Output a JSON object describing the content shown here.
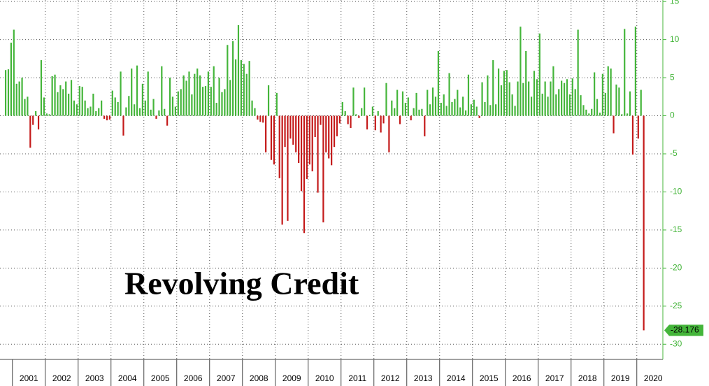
{
  "chart_data": {
    "type": "bar",
    "title": "Revolving Credit",
    "values": [
      6.0,
      6.1,
      9.6,
      11.3,
      4.2,
      4.5,
      5.0,
      2.2,
      2.5,
      -4.2,
      -1.2,
      0.6,
      -1.8,
      7.3,
      2.4,
      0.3,
      0.2,
      5.2,
      5.4,
      3.1,
      4.0,
      3.5,
      4.5,
      2.9,
      4.7,
      2.0,
      1.5,
      3.9,
      3.8,
      2.0,
      1.0,
      1.2,
      2.9,
      0.6,
      1.0,
      2.0,
      -0.4,
      -0.6,
      -0.5,
      3.3,
      2.4,
      1.8,
      5.8,
      -2.6,
      1.1,
      2.6,
      6.2,
      1.5,
      6.6,
      1.0,
      4.2,
      2.0,
      5.8,
      0.8,
      2.2,
      -0.4,
      0.7,
      6.5,
      0.9,
      -1.3,
      5.0,
      2.5,
      1.2,
      3.2,
      3.5,
      5.3,
      4.6,
      5.8,
      2.8,
      5.5,
      6.2,
      5.3,
      3.8,
      3.9,
      5.8,
      3.8,
      6.5,
      1.7,
      5.0,
      3.1,
      3.5,
      9.3,
      4.7,
      9.8,
      7.4,
      11.9,
      7.3,
      6.8,
      5.5,
      7.2,
      2.0,
      1.0,
      -0.5,
      -0.8,
      -0.9,
      -4.8,
      4.0,
      -5.8,
      -6.4,
      3.0,
      -8.2,
      -14.3,
      -4.1,
      -13.8,
      -3.0,
      -3.8,
      -4.8,
      -6.2,
      -9.9,
      -15.4,
      -8.3,
      -6.4,
      -7.3,
      -2.8,
      -10.1,
      -1.2,
      -14.0,
      -4.8,
      -5.6,
      -6.5,
      -4.1,
      -2.7,
      -1.0,
      1.8,
      0.6,
      -1.1,
      -1.6,
      3.7,
      0.2,
      -0.3,
      1.0,
      3.7,
      -1.8,
      0.1,
      1.2,
      -1.9,
      0.6,
      -2.2,
      -1.0,
      4.3,
      -4.8,
      2.0,
      1.0,
      3.4,
      -1.1,
      3.2,
      1.7,
      2.4,
      -0.6,
      1.0,
      3.0,
      0.8,
      0.9,
      -2.7,
      3.4,
      1.5,
      3.7,
      2.5,
      8.5,
      1.7,
      2.8,
      1.3,
      5.6,
      1.8,
      2.2,
      3.4,
      1.1,
      2.5,
      0.7,
      5.4,
      1.5,
      2.1,
      1.2,
      -0.3,
      4.4,
      1.8,
      5.3,
      1.4,
      7.3,
      1.5,
      6.2,
      4.0,
      5.9,
      6.0,
      4.4,
      2.8,
      1.3,
      4.5,
      11.7,
      4.3,
      8.5,
      4.5,
      2.5,
      5.9,
      4.8,
      10.8,
      2.9,
      4.5,
      2.5,
      4.5,
      6.5,
      2.8,
      3.5,
      4.6,
      4.3,
      4.8,
      2.8,
      4.9,
      3.5,
      11.3,
      2.7,
      1.4,
      0.8,
      0.3,
      0.9,
      5.7,
      2.2,
      0.4,
      5.5,
      3.0,
      6.5,
      6.2,
      -2.3,
      4.1,
      3.7,
      0.2,
      11.4,
      0.3,
      3.2,
      -5.1,
      11.7,
      -3.0,
      3.4,
      -28.176
    ],
    "positive_color": "#44b53a",
    "negative_color": "#c41a1a",
    "ylim": [
      -31.5,
      15.2
    ],
    "yticks": [
      15,
      10,
      5,
      0,
      -5,
      -10,
      -15,
      -20,
      -25,
      -30
    ],
    "xticks": [
      {
        "value": 3,
        "label": "2001"
      },
      {
        "value": 15,
        "label": "2002"
      },
      {
        "value": 27,
        "label": "2003"
      },
      {
        "value": 39,
        "label": "2004"
      },
      {
        "value": 51,
        "label": "2005"
      },
      {
        "value": 63,
        "label": "2006"
      },
      {
        "value": 75,
        "label": "2007"
      },
      {
        "value": 87,
        "label": "2008"
      },
      {
        "value": 99,
        "label": "2009"
      },
      {
        "value": 111,
        "label": "2010"
      },
      {
        "value": 123,
        "label": "2011"
      },
      {
        "value": 135,
        "label": "2012"
      },
      {
        "value": 147,
        "label": "2013"
      },
      {
        "value": 159,
        "label": "2014"
      },
      {
        "value": 171,
        "label": "2015"
      },
      {
        "value": 183,
        "label": "2016"
      },
      {
        "value": 195,
        "label": "2017"
      },
      {
        "value": 207,
        "label": "2018"
      },
      {
        "value": 219,
        "label": "2019"
      },
      {
        "value": 231,
        "label": "2020"
      }
    ],
    "grid": true
  }
}
